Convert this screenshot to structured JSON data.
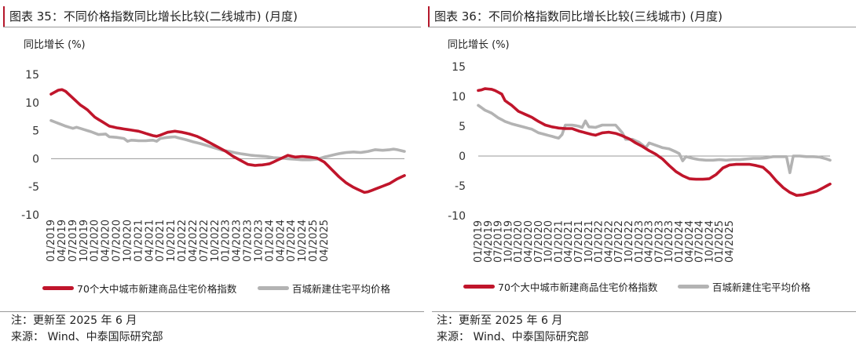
{
  "colors": {
    "red": "#c0152b",
    "grey": "#b3b3b3",
    "axis": "#999999"
  },
  "charts": [
    {
      "figure_label": "图表 35：不同价格指数同比增长比较(二线城市) (月度)",
      "ylabel": "同比增长 (%)",
      "note": "注：更新至 2025 年 6 月",
      "source": "来源： Wind、中泰国际研究部",
      "legend": [
        "70个大中城市新建商品住宅价格指数",
        "百城新建住宅平均价格"
      ]
    },
    {
      "figure_label": "图表 36：不同价格指数同比增长比较(三线城市) (月度)",
      "ylabel": "同比增长 (%)",
      "note": "注：更新至 2025 年 6 月",
      "source": "来源： Wind、中泰国际研究部",
      "legend": [
        "70个大中城市新建商品住宅价格指数",
        "百城新建住宅平均价格"
      ]
    }
  ],
  "chart_data": [
    {
      "type": "line",
      "title": "不同价格指数同比增长比较(二线城市) (月度)",
      "ylabel": "同比增长 (%)",
      "ylim": [
        -10,
        15
      ],
      "yticks": [
        -10,
        -5,
        0,
        5,
        10,
        15
      ],
      "x_start": "01/2019",
      "x_end": "06/2025",
      "xticks": [
        "01/2019",
        "04/2019",
        "07/2019",
        "10/2019",
        "01/2020",
        "04/2020",
        "07/2020",
        "10/2020",
        "01/2021",
        "04/2021",
        "07/2021",
        "10/2021",
        "01/2022",
        "04/2022",
        "07/2022",
        "10/2022",
        "01/2023",
        "04/2023",
        "07/2023",
        "10/2023",
        "01/2024",
        "04/2024",
        "07/2024",
        "10/2024",
        "01/2025",
        "04/2025"
      ],
      "series": [
        {
          "name": "70个大中城市新建商品住宅价格指数",
          "color": "red",
          "anchors": [
            [
              0,
              11.5
            ],
            [
              2,
              12.2
            ],
            [
              3,
              12.3
            ],
            [
              4,
              12
            ],
            [
              6,
              10.8
            ],
            [
              8,
              9.6
            ],
            [
              10,
              8.7
            ],
            [
              12,
              7.4
            ],
            [
              14,
              6.6
            ],
            [
              16,
              5.8
            ],
            [
              18,
              5.5
            ],
            [
              20,
              5.3
            ],
            [
              22,
              5.1
            ],
            [
              24,
              4.9
            ],
            [
              26,
              4.5
            ],
            [
              28,
              4.1
            ],
            [
              29,
              4.0
            ],
            [
              30,
              4.2
            ],
            [
              32,
              4.7
            ],
            [
              34,
              4.9
            ],
            [
              36,
              4.7
            ],
            [
              38,
              4.4
            ],
            [
              40,
              4.0
            ],
            [
              42,
              3.4
            ],
            [
              44,
              2.7
            ],
            [
              46,
              2.0
            ],
            [
              48,
              1.3
            ],
            [
              50,
              0.4
            ],
            [
              52,
              -0.3
            ],
            [
              54,
              -1.0
            ],
            [
              56,
              -1.2
            ],
            [
              58,
              -1.1
            ],
            [
              60,
              -0.9
            ],
            [
              62,
              -0.3
            ],
            [
              64,
              0.3
            ],
            [
              65,
              0.6
            ],
            [
              67,
              0.3
            ],
            [
              69,
              0.4
            ],
            [
              71,
              0.3
            ],
            [
              73,
              0.1
            ],
            [
              75,
              -0.6
            ],
            [
              77,
              -1.9
            ],
            [
              79,
              -3.2
            ],
            [
              81,
              -4.3
            ],
            [
              83,
              -5.1
            ],
            [
              85,
              -5.7
            ],
            [
              86,
              -6.0
            ],
            [
              87,
              -5.9
            ],
            [
              89,
              -5.4
            ],
            [
              91,
              -4.9
            ],
            [
              93,
              -4.4
            ],
            [
              95,
              -3.6
            ],
            [
              96,
              -3.3
            ],
            [
              97,
              -3.0
            ]
          ]
        },
        {
          "name": "百城新建住宅平均价格",
          "color": "grey",
          "anchors": [
            [
              0,
              6.8
            ],
            [
              2,
              6.3
            ],
            [
              4,
              5.8
            ],
            [
              6,
              5.4
            ],
            [
              7,
              5.6
            ],
            [
              9,
              5.2
            ],
            [
              11,
              4.8
            ],
            [
              13,
              4.3
            ],
            [
              15,
              4.4
            ],
            [
              16,
              3.9
            ],
            [
              18,
              3.8
            ],
            [
              20,
              3.6
            ],
            [
              21,
              3.1
            ],
            [
              22,
              3.3
            ],
            [
              24,
              3.2
            ],
            [
              26,
              3.2
            ],
            [
              28,
              3.3
            ],
            [
              29,
              3.1
            ],
            [
              30,
              3.6
            ],
            [
              32,
              3.8
            ],
            [
              34,
              3.9
            ],
            [
              35,
              3.7
            ],
            [
              37,
              3.4
            ],
            [
              39,
              3.0
            ],
            [
              41,
              2.7
            ],
            [
              43,
              2.3
            ],
            [
              45,
              1.9
            ],
            [
              47,
              1.5
            ],
            [
              49,
              1.3
            ],
            [
              51,
              1.0
            ],
            [
              53,
              0.8
            ],
            [
              55,
              0.6
            ],
            [
              57,
              0.5
            ],
            [
              59,
              0.4
            ],
            [
              61,
              0.2
            ],
            [
              63,
              0.1
            ],
            [
              65,
              0.0
            ],
            [
              67,
              -0.1
            ],
            [
              69,
              -0.2
            ],
            [
              71,
              -0.2
            ],
            [
              73,
              -0.1
            ],
            [
              75,
              0.3
            ],
            [
              77,
              0.6
            ],
            [
              79,
              0.9
            ],
            [
              81,
              1.1
            ],
            [
              83,
              1.2
            ],
            [
              85,
              1.1
            ],
            [
              87,
              1.3
            ],
            [
              89,
              1.6
            ],
            [
              91,
              1.5
            ],
            [
              93,
              1.6
            ],
            [
              94,
              1.7
            ],
            [
              95,
              1.6
            ],
            [
              97,
              1.3
            ]
          ]
        }
      ]
    },
    {
      "type": "line",
      "title": "不同价格指数同比增长比较(三线城市) (月度)",
      "ylabel": "同比增长 (%)",
      "ylim": [
        -10,
        15
      ],
      "yticks": [
        -10,
        -5,
        0,
        5,
        10,
        15
      ],
      "x_start": "01/2019",
      "x_end": "06/2025",
      "xticks": [
        "01/2019",
        "04/2019",
        "07/2019",
        "10/2019",
        "01/2020",
        "04/2020",
        "07/2020",
        "10/2020",
        "01/2021",
        "04/2021",
        "07/2021",
        "10/2021",
        "01/2022",
        "04/2022",
        "07/2022",
        "10/2022",
        "01/2023",
        "04/2023",
        "07/2023",
        "10/2023",
        "01/2024",
        "04/2024",
        "07/2024",
        "10/2024",
        "01/2025",
        "04/2025"
      ],
      "series": [
        {
          "name": "70个大中城市新建商品住宅价格指数",
          "color": "red",
          "anchors": [
            [
              0,
              11.0
            ],
            [
              1,
              11.1
            ],
            [
              2,
              11.3
            ],
            [
              4,
              11.2
            ],
            [
              5,
              11.0
            ],
            [
              7,
              10.4
            ],
            [
              8,
              9.3
            ],
            [
              10,
              8.5
            ],
            [
              12,
              7.5
            ],
            [
              14,
              7.0
            ],
            [
              16,
              6.5
            ],
            [
              18,
              5.8
            ],
            [
              20,
              5.2
            ],
            [
              22,
              4.9
            ],
            [
              24,
              4.7
            ],
            [
              26,
              4.6
            ],
            [
              28,
              4.6
            ],
            [
              30,
              4.2
            ],
            [
              32,
              3.9
            ],
            [
              34,
              3.6
            ],
            [
              35,
              3.5
            ],
            [
              37,
              3.9
            ],
            [
              39,
              4.0
            ],
            [
              41,
              3.8
            ],
            [
              43,
              3.4
            ],
            [
              45,
              2.9
            ],
            [
              47,
              2.2
            ],
            [
              49,
              1.6
            ],
            [
              51,
              0.9
            ],
            [
              53,
              0.3
            ],
            [
              55,
              -0.5
            ],
            [
              57,
              -1.6
            ],
            [
              59,
              -2.6
            ],
            [
              61,
              -3.3
            ],
            [
              63,
              -3.8
            ],
            [
              65,
              -3.9
            ],
            [
              67,
              -3.9
            ],
            [
              69,
              -3.8
            ],
            [
              71,
              -3.1
            ],
            [
              73,
              -2.0
            ],
            [
              75,
              -1.5
            ],
            [
              77,
              -1.4
            ],
            [
              79,
              -1.4
            ],
            [
              81,
              -1.4
            ],
            [
              83,
              -1.6
            ],
            [
              85,
              -1.9
            ],
            [
              87,
              -2.9
            ],
            [
              89,
              -4.2
            ],
            [
              91,
              -5.3
            ],
            [
              93,
              -6.1
            ],
            [
              95,
              -6.6
            ],
            [
              97,
              -6.5
            ],
            [
              99,
              -6.2
            ],
            [
              101,
              -5.9
            ],
            [
              103,
              -5.3
            ],
            [
              105,
              -4.7
            ]
          ]
        },
        {
          "name": "百城新建住宅平均价格",
          "color": "grey",
          "anchors": [
            [
              0,
              8.5
            ],
            [
              2,
              7.7
            ],
            [
              4,
              7.2
            ],
            [
              6,
              6.4
            ],
            [
              8,
              5.8
            ],
            [
              10,
              5.4
            ],
            [
              12,
              5.1
            ],
            [
              14,
              4.8
            ],
            [
              16,
              4.5
            ],
            [
              18,
              3.9
            ],
            [
              20,
              3.6
            ],
            [
              22,
              3.3
            ],
            [
              24,
              3.0
            ],
            [
              25,
              3.6
            ],
            [
              26,
              5.2
            ],
            [
              28,
              5.2
            ],
            [
              30,
              5.0
            ],
            [
              31,
              4.8
            ],
            [
              32,
              5.9
            ],
            [
              33,
              4.9
            ],
            [
              35,
              4.8
            ],
            [
              37,
              5.2
            ],
            [
              39,
              5.2
            ],
            [
              41,
              5.2
            ],
            [
              43,
              3.9
            ],
            [
              44,
              2.8
            ],
            [
              46,
              2.8
            ],
            [
              48,
              2.3
            ],
            [
              50,
              1.4
            ],
            [
              51,
              2.2
            ],
            [
              53,
              1.8
            ],
            [
              55,
              1.4
            ],
            [
              57,
              1.2
            ],
            [
              59,
              0.7
            ],
            [
              60,
              0.4
            ],
            [
              61,
              -0.8
            ],
            [
              62,
              -0.1
            ],
            [
              64,
              -0.4
            ],
            [
              66,
              -0.6
            ],
            [
              68,
              -0.7
            ],
            [
              70,
              -0.7
            ],
            [
              72,
              -0.6
            ],
            [
              74,
              -0.7
            ],
            [
              76,
              -0.6
            ],
            [
              78,
              -0.6
            ],
            [
              80,
              -0.5
            ],
            [
              82,
              -0.4
            ],
            [
              84,
              -0.4
            ],
            [
              86,
              -0.3
            ],
            [
              88,
              -0.1
            ],
            [
              90,
              -0.1
            ],
            [
              92,
              -0.1
            ],
            [
              93,
              -2.8
            ],
            [
              94,
              0.0
            ],
            [
              96,
              0.0
            ],
            [
              98,
              -0.1
            ],
            [
              100,
              -0.1
            ],
            [
              102,
              -0.2
            ],
            [
              104,
              -0.5
            ],
            [
              105,
              -0.7
            ]
          ]
        }
      ]
    }
  ]
}
